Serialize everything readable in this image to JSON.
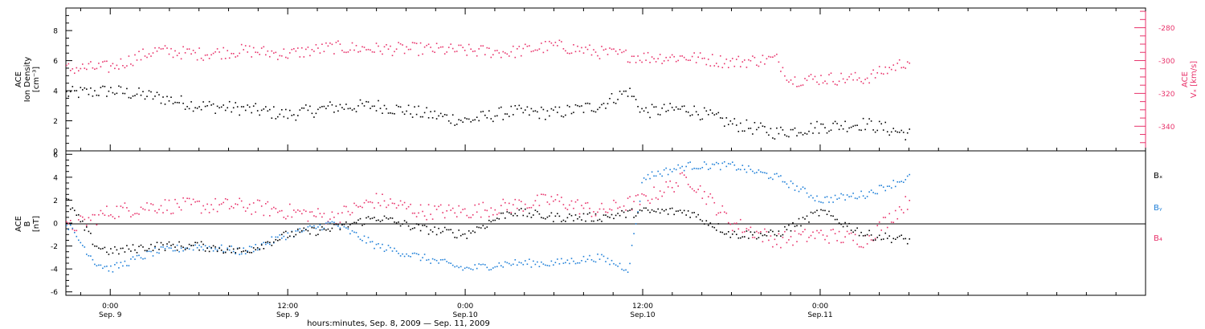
{
  "chart_data": [
    {
      "type": "scatter",
      "panel": "top",
      "ylabel_left": [
        "ACE",
        "Ion Density",
        "[cm⁻³]"
      ],
      "ylabel_right": [
        "ACE",
        "Vₓ [km/s]"
      ],
      "ylim_left": [
        0,
        9.5
      ],
      "ylim_right": [
        -355,
        -268
      ],
      "yticks_left": [
        "0",
        "2",
        "4",
        "6",
        "8"
      ],
      "yticks_right": [
        "-280",
        "-300",
        "-320",
        "-340"
      ],
      "series": [
        {
          "axis": "left",
          "color": "#000000",
          "x": [
            -3,
            0,
            3,
            6,
            9,
            12,
            15,
            18,
            21,
            24,
            27,
            30,
            33,
            35,
            36,
            39,
            42,
            45,
            48,
            51,
            54
          ],
          "y": [
            3.8,
            4.0,
            3.6,
            3.0,
            2.8,
            2.4,
            2.9,
            3.0,
            2.5,
            2.0,
            2.6,
            2.5,
            3.0,
            4.0,
            2.6,
            2.8,
            1.8,
            1.2,
            1.6,
            1.8,
            1.1
          ]
        },
        {
          "axis": "right",
          "color": "#e8336b",
          "x": [
            -3,
            0,
            3,
            6,
            9,
            12,
            15,
            18,
            21,
            24,
            27,
            30,
            33,
            36,
            39,
            42,
            45,
            46,
            48,
            51,
            54
          ],
          "y": [
            -305,
            -304,
            -294,
            -296,
            -294,
            -296,
            -292,
            -293,
            -293,
            -294,
            -295,
            -291,
            -295,
            -298,
            -298,
            -301,
            -299,
            -312,
            -311,
            -311,
            -300
          ]
        }
      ]
    },
    {
      "type": "scatter",
      "panel": "bottom",
      "ylabel_left": [
        "ACE",
        "B",
        "[nT]"
      ],
      "ylim": [
        -6.3,
        6.3
      ],
      "yticks": [
        "-6",
        "-4",
        "-2",
        "0",
        "2",
        "4",
        "6"
      ],
      "legend": [
        "Bₓ",
        "Bᵧ",
        "B₄"
      ],
      "series": [
        {
          "name": "Bₓ",
          "color": "#000000",
          "x": [
            -3,
            -2,
            -1,
            0,
            3,
            6,
            9,
            12,
            15,
            18,
            21,
            24,
            27,
            30,
            33,
            36,
            39,
            42,
            45,
            48,
            51,
            54
          ],
          "y": [
            2.0,
            0.0,
            -2.0,
            -2.5,
            -2.0,
            -2.0,
            -2.5,
            -1.0,
            -0.5,
            0.5,
            -0.5,
            -1.0,
            1.0,
            0.5,
            0.5,
            1.0,
            1.0,
            -1.0,
            -1.0,
            1.0,
            -1.0,
            -1.5
          ]
        },
        {
          "name": "Bᵧ",
          "color": "#1e7fd8",
          "x": [
            -3,
            -1,
            0,
            3,
            6,
            9,
            12,
            15,
            18,
            21,
            24,
            27,
            30,
            33,
            35,
            36,
            39,
            42,
            45,
            48,
            51,
            54
          ],
          "y": [
            0.0,
            -3.5,
            -4.0,
            -2.5,
            -2.0,
            -2.5,
            -1.0,
            0.0,
            -2.0,
            -3.0,
            -4.0,
            -3.5,
            -3.5,
            -3.0,
            -4.0,
            4.0,
            5.0,
            5.0,
            4.0,
            2.0,
            2.5,
            4.0
          ]
        },
        {
          "name": "B₄",
          "color": "#e8336b",
          "x": [
            -3,
            0,
            3,
            6,
            9,
            12,
            15,
            18,
            21,
            24,
            27,
            30,
            33,
            36,
            39,
            42,
            45,
            48,
            51,
            54
          ],
          "y": [
            -0.5,
            1.0,
            1.5,
            1.5,
            1.5,
            1.0,
            0.5,
            2.0,
            1.0,
            1.0,
            1.5,
            2.0,
            1.0,
            2.0,
            4.0,
            0.0,
            -1.5,
            -1.0,
            -1.5,
            2.0
          ]
        }
      ]
    }
  ],
  "x_axis": {
    "range_hours": [
      -3,
      70
    ],
    "ticks": [
      {
        "hour": 0,
        "time": "0:00",
        "date": "Sep. 9"
      },
      {
        "hour": 12,
        "time": "12:00",
        "date": "Sep. 9"
      },
      {
        "hour": 24,
        "time": "0:00",
        "date": "Sep.10"
      },
      {
        "hour": 36,
        "time": "12:00",
        "date": "Sep.10"
      },
      {
        "hour": 48,
        "time": "0:00",
        "date": "Sep.11"
      }
    ],
    "label": "hours:minutes, Sep.  8, 2009 — Sep. 11, 2009"
  }
}
